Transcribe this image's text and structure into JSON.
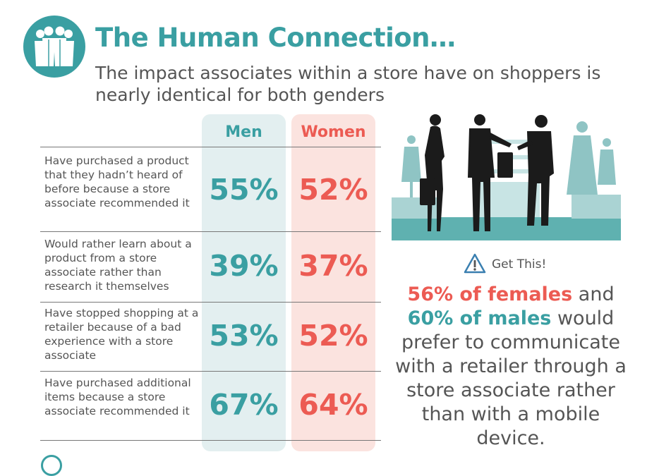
{
  "header": {
    "title": "The Human Connection…",
    "subtitle": "The impact associates within a store have on shoppers is nearly identical for both genders"
  },
  "table": {
    "columns": [
      "Men",
      "Women"
    ],
    "rows": [
      {
        "label": "Have purchased a product that they hadn’t heard of before because a store associate recommended it",
        "men": "55%",
        "women": "52%"
      },
      {
        "label": "Would rather learn about a product from a store associate rather than research it themselves",
        "men": "39%",
        "women": "37%"
      },
      {
        "label": "Have stopped shopping at a retailer because of a bad experience with a store associate",
        "men": "53%",
        "women": "52%"
      },
      {
        "label": "Have purchased additional items because a store associate recommended it",
        "men": "67%",
        "women": "64%"
      }
    ]
  },
  "callout": {
    "badge": "Get This!",
    "female_stat": "56% of females",
    "and": "and",
    "male_stat": "60% of males",
    "rest": "would prefer to communicate with a retailer through a store associate rather than with a mobile device."
  },
  "icons": [
    "people-group-icon",
    "warning-icon",
    "shoppers-illustration"
  ],
  "colors": {
    "teal": "#3a9fa2",
    "coral": "#ec5b53",
    "men_bg": "#e3eff0",
    "women_bg": "#fbe3df"
  }
}
